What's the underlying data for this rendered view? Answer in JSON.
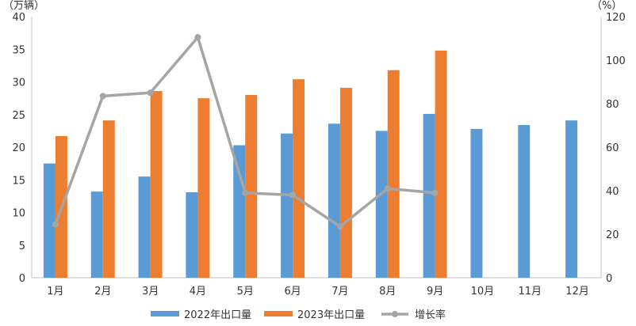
{
  "chart_data": {
    "type": "bar",
    "title": "",
    "categories": [
      "1月",
      "2月",
      "3月",
      "4月",
      "5月",
      "6月",
      "7月",
      "8月",
      "9月",
      "10月",
      "11月",
      "12月"
    ],
    "left_unit": "（万辆）",
    "right_unit": "（%）",
    "left_axis": {
      "min": 0,
      "max": 40,
      "step": 5
    },
    "right_axis": {
      "min": 0,
      "max": 120,
      "step": 20
    },
    "series": [
      {
        "name": "2022年出口量",
        "type": "bar",
        "axis": "left",
        "color": "#5b9bd5",
        "values": [
          17.5,
          13.2,
          15.5,
          13.1,
          20.3,
          22.1,
          23.6,
          22.5,
          25.1,
          22.8,
          23.4,
          24.1
        ]
      },
      {
        "name": "2023年出口量",
        "type": "bar",
        "axis": "left",
        "color": "#ed7d31",
        "values": [
          21.7,
          24.1,
          28.6,
          27.5,
          28.0,
          30.4,
          29.1,
          31.8,
          34.8,
          null,
          null,
          null
        ]
      },
      {
        "name": "增长率",
        "type": "line",
        "axis": "right",
        "color": "#a5a5a5",
        "values": [
          24.5,
          83.5,
          85.0,
          110.5,
          39.0,
          38.0,
          23.5,
          41.0,
          39.0,
          null,
          null,
          null
        ]
      }
    ],
    "grid": false,
    "legend_position": "bottom"
  }
}
